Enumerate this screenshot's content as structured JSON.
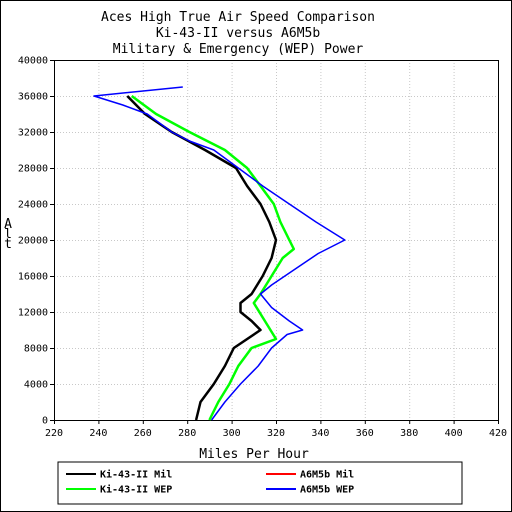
{
  "chart_data": {
    "type": "line",
    "title": "Aces High True Air Speed Comparison",
    "subtitle": "Ki-43-II versus A6M5b",
    "subtitle2": "Military & Emergency (WEP) Power",
    "xlabel": "Miles Per Hour",
    "ylabel": "Alt",
    "xlim": [
      220,
      420
    ],
    "ylim": [
      0,
      40000
    ],
    "x_ticks": [
      "220",
      "240",
      "260",
      "280",
      "300",
      "320",
      "340",
      "360",
      "380",
      "400",
      "420"
    ],
    "y_ticks": [
      "0",
      "4000",
      "8000",
      "12000",
      "16000",
      "20000",
      "24000",
      "28000",
      "32000",
      "36000",
      "40000"
    ],
    "grid": true,
    "legend_position": "bottom",
    "series": [
      {
        "name": "Ki-43-II Mil",
        "color": "#000000",
        "points": [
          [
            284,
            0
          ],
          [
            286,
            2000
          ],
          [
            292,
            4000
          ],
          [
            297,
            6000
          ],
          [
            301,
            8000
          ],
          [
            313,
            10000
          ],
          [
            309,
            11000
          ],
          [
            304,
            12000
          ],
          [
            304,
            13000
          ],
          [
            309,
            14000
          ],
          [
            314,
            16000
          ],
          [
            318,
            18000
          ],
          [
            320,
            20000
          ],
          [
            317,
            22000
          ],
          [
            313,
            24000
          ],
          [
            307,
            26000
          ],
          [
            302,
            28000
          ],
          [
            288,
            30000
          ],
          [
            273,
            32000
          ],
          [
            261,
            34000
          ],
          [
            253,
            36000
          ]
        ]
      },
      {
        "name": "A6M5b Mil",
        "color": "#ff0000",
        "points": []
      },
      {
        "name": "Ki-43-II WEP",
        "color": "#00ff00",
        "points": [
          [
            290,
            0
          ],
          [
            294,
            2000
          ],
          [
            299,
            4000
          ],
          [
            303,
            6000
          ],
          [
            309,
            8000
          ],
          [
            320,
            9000
          ],
          [
            315,
            11000
          ],
          [
            310,
            13000
          ],
          [
            313,
            14000
          ],
          [
            318,
            16000
          ],
          [
            323,
            18000
          ],
          [
            328,
            19000
          ],
          [
            326,
            20000
          ],
          [
            322,
            22000
          ],
          [
            319,
            24000
          ],
          [
            313,
            26000
          ],
          [
            307,
            28000
          ],
          [
            297,
            30000
          ],
          [
            281,
            32000
          ],
          [
            266,
            34000
          ],
          [
            255,
            36000
          ]
        ]
      },
      {
        "name": "A6M5b WEP",
        "color": "#0000ff",
        "points": [
          [
            291,
            0
          ],
          [
            297,
            2000
          ],
          [
            304,
            4000
          ],
          [
            312,
            6000
          ],
          [
            318,
            8000
          ],
          [
            325,
            9500
          ],
          [
            332,
            10000
          ],
          [
            326,
            11000
          ],
          [
            318,
            12500
          ],
          [
            313,
            14000
          ],
          [
            318,
            15000
          ],
          [
            330,
            17000
          ],
          [
            339,
            18500
          ],
          [
            351,
            20000
          ],
          [
            338,
            22000
          ],
          [
            326,
            24000
          ],
          [
            314,
            26000
          ],
          [
            303,
            28000
          ],
          [
            292,
            30000
          ],
          [
            281,
            31000
          ],
          [
            273,
            32000
          ],
          [
            262,
            34000
          ],
          [
            251,
            35000
          ],
          [
            238,
            36000
          ],
          [
            278,
            37000
          ]
        ]
      }
    ]
  }
}
